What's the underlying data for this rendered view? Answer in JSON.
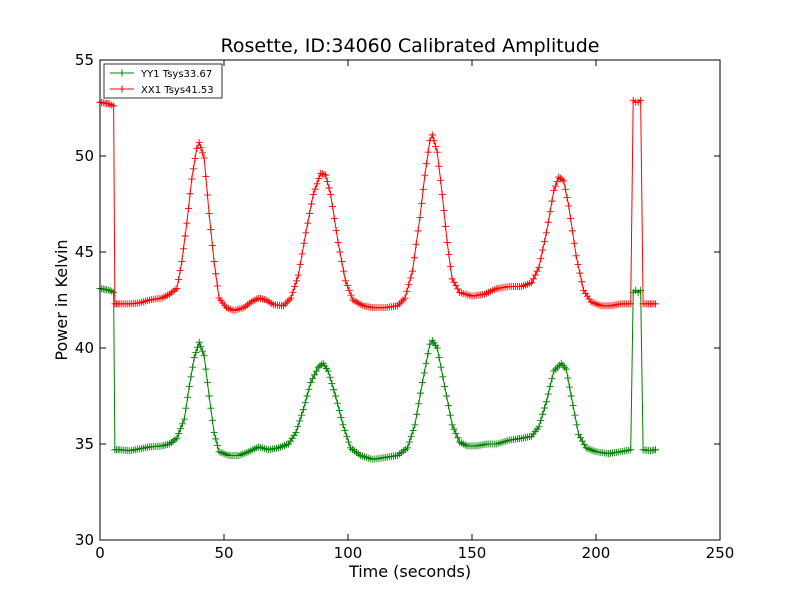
{
  "chart_data": {
    "type": "line",
    "title": "Rosette, ID:34060 Calibrated Amplitude",
    "xlabel": "Time (seconds)",
    "ylabel": "Power in Kelvin",
    "xlim": [
      0,
      250
    ],
    "ylim": [
      30,
      55
    ],
    "xticks": [
      0,
      50,
      100,
      150,
      200,
      250
    ],
    "yticks": [
      30,
      35,
      40,
      45,
      50,
      55
    ],
    "xtick_labels": [
      "0",
      "50",
      "100",
      "150",
      "200",
      "250"
    ],
    "ytick_labels": [
      "30",
      "35",
      "40",
      "45",
      "50",
      "55"
    ],
    "grid": false,
    "legend_position": "top-left",
    "marker": "+",
    "series": [
      {
        "name": "YY1 Tsys33.67",
        "color": "#008000",
        "points": [
          [
            0,
            43.1
          ],
          [
            2,
            43.05
          ],
          [
            4,
            43.0
          ],
          [
            5.5,
            42.9
          ],
          [
            6,
            34.7
          ],
          [
            8,
            34.7
          ],
          [
            12,
            34.65
          ],
          [
            16,
            34.75
          ],
          [
            20,
            34.85
          ],
          [
            25,
            34.9
          ],
          [
            28,
            35.0
          ],
          [
            31,
            35.3
          ],
          [
            34,
            36.3
          ],
          [
            36,
            38.0
          ],
          [
            38,
            39.5
          ],
          [
            40,
            40.3
          ],
          [
            42,
            39.6
          ],
          [
            44,
            37.5
          ],
          [
            46,
            35.6
          ],
          [
            48,
            34.6
          ],
          [
            52,
            34.4
          ],
          [
            56,
            34.4
          ],
          [
            60,
            34.6
          ],
          [
            64,
            34.85
          ],
          [
            68,
            34.7
          ],
          [
            72,
            34.8
          ],
          [
            76,
            35.0
          ],
          [
            79,
            35.6
          ],
          [
            82,
            36.8
          ],
          [
            85,
            38.2
          ],
          [
            88,
            39.0
          ],
          [
            90,
            39.2
          ],
          [
            92,
            38.8
          ],
          [
            95,
            37.5
          ],
          [
            98,
            36.0
          ],
          [
            101,
            34.8
          ],
          [
            105,
            34.4
          ],
          [
            110,
            34.2
          ],
          [
            115,
            34.3
          ],
          [
            120,
            34.4
          ],
          [
            124,
            34.8
          ],
          [
            127,
            36.0
          ],
          [
            130,
            38.2
          ],
          [
            133,
            40.2
          ],
          [
            134,
            40.4
          ],
          [
            136,
            40.0
          ],
          [
            139,
            38.0
          ],
          [
            142,
            36.0
          ],
          [
            145,
            35.1
          ],
          [
            148,
            34.9
          ],
          [
            152,
            34.9
          ],
          [
            156,
            35.0
          ],
          [
            160,
            35.0
          ],
          [
            165,
            35.2
          ],
          [
            170,
            35.3
          ],
          [
            174,
            35.4
          ],
          [
            177,
            35.9
          ],
          [
            180,
            37.2
          ],
          [
            183,
            38.8
          ],
          [
            186,
            39.2
          ],
          [
            188,
            38.9
          ],
          [
            190,
            37.5
          ],
          [
            193,
            35.5
          ],
          [
            196,
            34.8
          ],
          [
            200,
            34.6
          ],
          [
            205,
            34.5
          ],
          [
            210,
            34.6
          ],
          [
            214,
            34.7
          ],
          [
            215,
            42.9
          ],
          [
            216,
            43.0
          ],
          [
            217,
            42.9
          ],
          [
            218,
            43.0
          ],
          [
            219,
            34.7
          ],
          [
            222,
            34.65
          ],
          [
            224,
            34.7
          ]
        ]
      },
      {
        "name": "XX1 Tsys41.53",
        "color": "#ff0000",
        "points": [
          [
            0,
            52.8
          ],
          [
            2,
            52.75
          ],
          [
            4,
            52.7
          ],
          [
            5.5,
            52.6
          ],
          [
            6,
            42.3
          ],
          [
            8,
            42.3
          ],
          [
            12,
            42.3
          ],
          [
            16,
            42.35
          ],
          [
            20,
            42.5
          ],
          [
            25,
            42.6
          ],
          [
            28,
            42.8
          ],
          [
            31,
            43.1
          ],
          [
            33,
            44.5
          ],
          [
            35,
            46.5
          ],
          [
            37,
            48.8
          ],
          [
            39,
            50.4
          ],
          [
            40,
            50.7
          ],
          [
            42,
            49.9
          ],
          [
            44,
            47.0
          ],
          [
            46,
            44.5
          ],
          [
            48,
            42.6
          ],
          [
            51,
            42.1
          ],
          [
            54,
            41.95
          ],
          [
            58,
            42.1
          ],
          [
            61,
            42.4
          ],
          [
            64,
            42.6
          ],
          [
            67,
            42.5
          ],
          [
            70,
            42.25
          ],
          [
            74,
            42.2
          ],
          [
            77,
            42.6
          ],
          [
            80,
            43.8
          ],
          [
            83,
            46.0
          ],
          [
            86,
            48.0
          ],
          [
            89,
            49.1
          ],
          [
            91,
            49.0
          ],
          [
            93,
            48.0
          ],
          [
            96,
            45.5
          ],
          [
            99,
            43.5
          ],
          [
            102,
            42.5
          ],
          [
            106,
            42.2
          ],
          [
            110,
            42.1
          ],
          [
            115,
            42.1
          ],
          [
            120,
            42.2
          ],
          [
            123,
            42.6
          ],
          [
            126,
            44.0
          ],
          [
            129,
            46.8
          ],
          [
            131,
            49.0
          ],
          [
            133,
            50.8
          ],
          [
            134,
            51.1
          ],
          [
            136,
            50.2
          ],
          [
            138,
            48.0
          ],
          [
            140,
            45.5
          ],
          [
            142,
            43.6
          ],
          [
            145,
            42.9
          ],
          [
            150,
            42.7
          ],
          [
            155,
            42.8
          ],
          [
            160,
            43.1
          ],
          [
            165,
            43.2
          ],
          [
            170,
            43.2
          ],
          [
            174,
            43.4
          ],
          [
            177,
            44.2
          ],
          [
            180,
            46.0
          ],
          [
            183,
            48.2
          ],
          [
            185,
            48.9
          ],
          [
            187,
            48.7
          ],
          [
            189,
            47.4
          ],
          [
            192,
            44.8
          ],
          [
            195,
            43.0
          ],
          [
            198,
            42.4
          ],
          [
            202,
            42.2
          ],
          [
            206,
            42.2
          ],
          [
            210,
            42.3
          ],
          [
            214,
            42.3
          ],
          [
            215,
            52.9
          ],
          [
            216,
            52.8
          ],
          [
            217,
            52.8
          ],
          [
            218,
            52.9
          ],
          [
            219,
            42.3
          ],
          [
            222,
            42.3
          ],
          [
            224,
            42.3
          ]
        ]
      }
    ]
  }
}
